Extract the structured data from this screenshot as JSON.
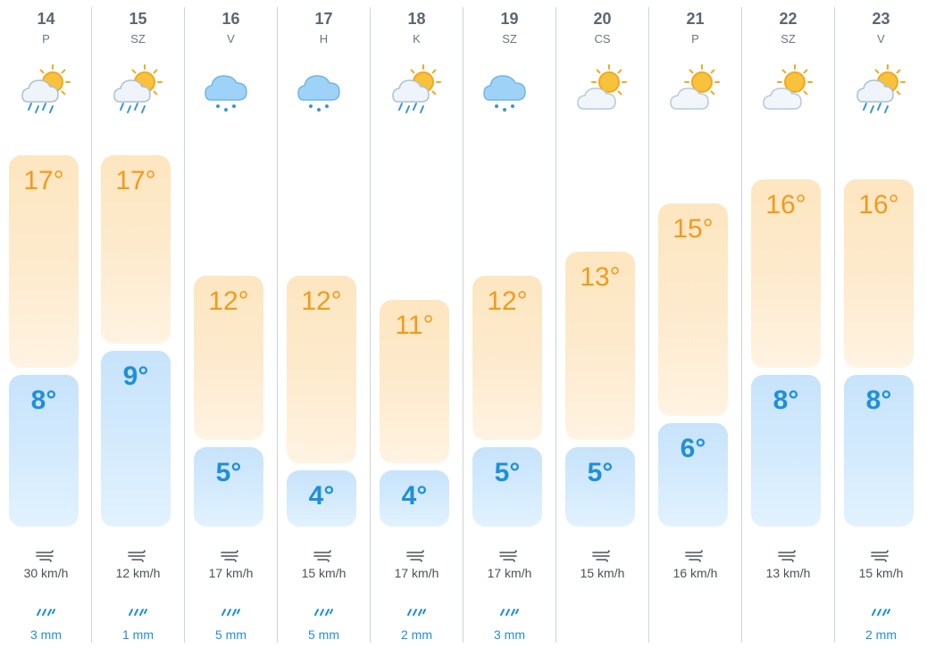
{
  "colors": {
    "high": "#f29a1e",
    "low": "#1f8fd8",
    "rain": "#1f8fd8",
    "text": "#5c6670"
  },
  "scale": {
    "min_temp": 4,
    "max_temp": 17
  },
  "days": [
    {
      "date": "14",
      "dow": "P",
      "icon": "sun-cloud-rain-icon",
      "high": 17,
      "low": 8,
      "high_label": "17°",
      "low_label": "8°",
      "wind": "30 km/h",
      "precip": "3 mm"
    },
    {
      "date": "15",
      "dow": "SZ",
      "icon": "sun-cloud-rain-icon",
      "high": 17,
      "low": 9,
      "high_label": "17°",
      "low_label": "9°",
      "wind": "12 km/h",
      "precip": "1 mm"
    },
    {
      "date": "16",
      "dow": "V",
      "icon": "cloud-rain-icon",
      "high": 12,
      "low": 5,
      "high_label": "12°",
      "low_label": "5°",
      "wind": "17 km/h",
      "precip": "5 mm"
    },
    {
      "date": "17",
      "dow": "H",
      "icon": "cloud-rain-icon",
      "high": 12,
      "low": 4,
      "high_label": "12°",
      "low_label": "4°",
      "wind": "15 km/h",
      "precip": "5 mm"
    },
    {
      "date": "18",
      "dow": "K",
      "icon": "sun-cloud-rain-icon",
      "high": 11,
      "low": 4,
      "high_label": "11°",
      "low_label": "4°",
      "wind": "17 km/h",
      "precip": "2 mm"
    },
    {
      "date": "19",
      "dow": "SZ",
      "icon": "cloud-rain-icon",
      "high": 12,
      "low": 5,
      "high_label": "12°",
      "low_label": "5°",
      "wind": "17 km/h",
      "precip": "3 mm"
    },
    {
      "date": "20",
      "dow": "CS",
      "icon": "partly-cloudy-icon",
      "high": 13,
      "low": 5,
      "high_label": "13°",
      "low_label": "5°",
      "wind": "15 km/h",
      "precip": ""
    },
    {
      "date": "21",
      "dow": "P",
      "icon": "partly-cloudy-icon",
      "high": 15,
      "low": 6,
      "high_label": "15°",
      "low_label": "6°",
      "wind": "16 km/h",
      "precip": ""
    },
    {
      "date": "22",
      "dow": "SZ",
      "icon": "partly-cloudy-icon",
      "high": 16,
      "low": 8,
      "high_label": "16°",
      "low_label": "8°",
      "wind": "13 km/h",
      "precip": ""
    },
    {
      "date": "23",
      "dow": "V",
      "icon": "sun-cloud-rain-icon",
      "high": 16,
      "low": 8,
      "high_label": "16°",
      "low_label": "8°",
      "wind": "15 km/h",
      "precip": "2 mm"
    }
  ]
}
